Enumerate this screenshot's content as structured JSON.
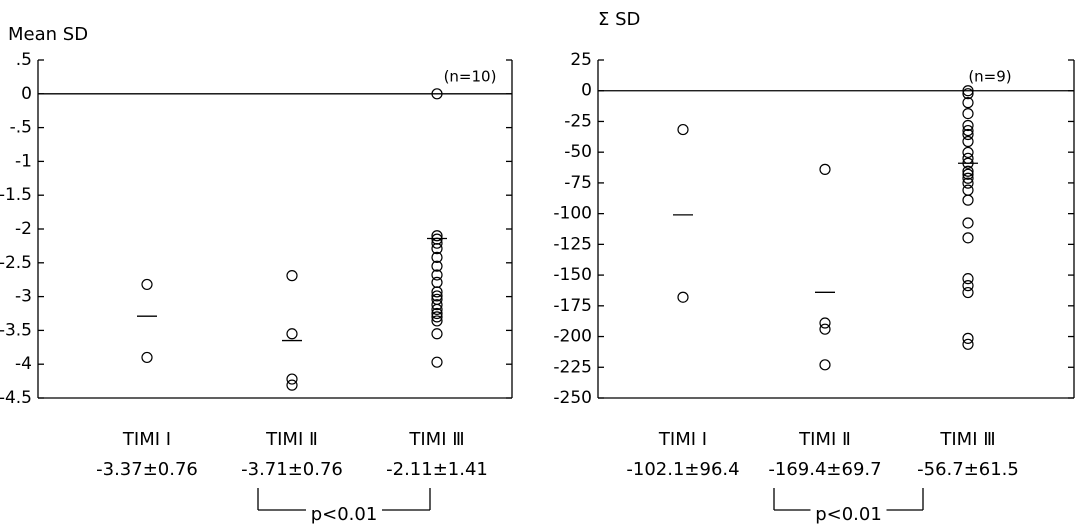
{
  "chart_data": [
    {
      "type": "strip",
      "title": "Mean SD",
      "categories": [
        "TIMI Ⅰ",
        "TIMI Ⅱ",
        "TIMI Ⅲ"
      ],
      "stats": [
        "-3.37±0.76",
        "-3.71±0.76",
        "-2.11±1.41"
      ],
      "values": [
        [
          -2.82,
          -3.9
        ],
        [
          -2.69,
          -3.55,
          -4.22,
          -4.31
        ],
        [
          0,
          -2.1,
          -2.15,
          -2.21,
          -2.29,
          -2.42,
          -2.55,
          -2.68,
          -2.79,
          -2.93,
          -2.99,
          -3.04,
          -3.12,
          -3.19,
          -3.25,
          -3.3,
          -3.36,
          -3.55,
          -3.97
        ]
      ],
      "means": [
        -3.29,
        -3.65,
        -2.14
      ],
      "ylim": [
        -4.5,
        0.5
      ],
      "yticks": [
        {
          "value": 0.5,
          "label": ".5"
        },
        0,
        {
          "value": -0.5,
          "label": "-.5"
        },
        -1,
        -1.5,
        -2,
        -2.5,
        -3,
        -3.5,
        -4,
        -4.5
      ],
      "n_label": "(n=10)",
      "p_label": "p<0.01"
    },
    {
      "type": "strip",
      "title": "Σ SD",
      "categories": [
        "TIMI Ⅰ",
        "TIMI Ⅱ",
        "TIMI Ⅲ"
      ],
      "stats": [
        "-102.1±96.4",
        "-169.4±69.7",
        "-56.7±61.5"
      ],
      "values": [
        [
          -31.6,
          -168
        ],
        [
          -64,
          -189,
          -194,
          -223
        ],
        [
          0,
          -2.4,
          -9.7,
          -18.6,
          -28.3,
          -32.4,
          -35.6,
          -41.3,
          -50.2,
          -55,
          -59,
          -65.5,
          -68,
          -71.2,
          -75.2,
          -80.9,
          -89,
          -107.6,
          -119.7,
          -152.9,
          -158.6,
          -164.2,
          -201.5,
          -206.3
        ]
      ],
      "means": [
        -101,
        -164,
        -59
      ],
      "ylim": [
        -250,
        25
      ],
      "yticks": [
        25,
        0,
        -25,
        -50,
        -75,
        -100,
        -125,
        -150,
        -175,
        -200,
        -225,
        -250
      ],
      "n_label": "(n=9)",
      "p_label": "p<0.01"
    }
  ]
}
